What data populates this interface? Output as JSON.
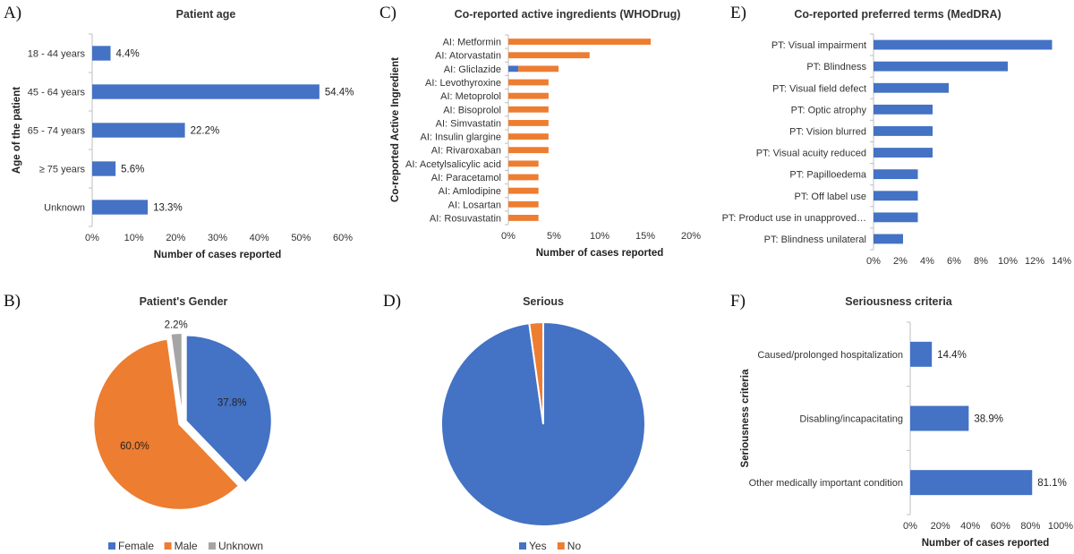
{
  "colors": {
    "blue": "#4472C4",
    "orange": "#ED7D31",
    "gray": "#A5A5A5",
    "axis": "#BFBFBF"
  },
  "chart_data": [
    {
      "panel": "A)",
      "type": "bar",
      "orientation": "horizontal",
      "title": "Patient age",
      "xlabel": "Number of cases reported",
      "ylabel": "Age of the patient",
      "categories": [
        "18 - 44 years",
        "45 - 64 years",
        "65 - 74 years",
        "≥ 75 years",
        "Unknown"
      ],
      "values": [
        4.4,
        54.4,
        22.2,
        5.6,
        13.3
      ],
      "data_labels": [
        "4.4%",
        "54.4%",
        "22.2%",
        "5.6%",
        "13.3%"
      ],
      "xlim": [
        0,
        60
      ],
      "xticks": [
        "0%",
        "10%",
        "20%",
        "30%",
        "40%",
        "50%",
        "60%"
      ],
      "color": "#4472C4"
    },
    {
      "panel": "C)",
      "type": "bar",
      "orientation": "horizontal",
      "stacked": true,
      "title": "Co-reported active ingredients (WHODrug)",
      "xlabel": "Number of cases reported",
      "ylabel": "Co-reported Active Ingredient",
      "categories": [
        "AI: Metformin",
        "AI: Atorvastatin",
        "AI: Gliclazide",
        "AI: Levothyroxine",
        "AI: Metoprolol",
        "AI: Bisoprolol",
        "AI: Simvastatin",
        "AI: Insulin glargine",
        "AI: Rivaroxaban",
        "AI: Acetylsalicylic acid",
        "AI: Paracetamol",
        "AI: Amlodipine",
        "AI: Losartan",
        "AI: Rosuvastatin"
      ],
      "series": [
        {
          "values": [
            0,
            0,
            1.1,
            0,
            0,
            0,
            0,
            0,
            0,
            0,
            0,
            0,
            0,
            0
          ],
          "color": "#4472C4"
        },
        {
          "values": [
            15.6,
            8.9,
            4.4,
            4.4,
            4.4,
            4.4,
            4.4,
            4.4,
            4.4,
            3.3,
            3.3,
            3.3,
            3.3,
            3.3
          ],
          "color": "#ED7D31"
        }
      ],
      "xlim": [
        0,
        20
      ],
      "xticks": [
        "0%",
        "5%",
        "10%",
        "15%",
        "20%"
      ]
    },
    {
      "panel": "E)",
      "type": "bar",
      "orientation": "horizontal",
      "title": "Co-reported preferred terms (MedDRA)",
      "categories": [
        "PT: Visual impairment",
        "PT: Blindness",
        "PT: Visual field defect",
        "PT: Optic atrophy",
        "PT: Vision blurred",
        "PT: Visual acuity reduced",
        "PT: Papilloedema",
        "PT: Off label use",
        "PT: Product use in unapproved…",
        "PT: Blindness unilateral"
      ],
      "values": [
        13.3,
        10.0,
        5.6,
        4.4,
        4.4,
        4.4,
        3.3,
        3.3,
        3.3,
        2.2
      ],
      "xlim": [
        0,
        14
      ],
      "xticks": [
        "0%",
        "2%",
        "4%",
        "6%",
        "8%",
        "10%",
        "12%",
        "14%"
      ],
      "color": "#4472C4"
    },
    {
      "panel": "B)",
      "type": "pie",
      "title": "Patient's Gender",
      "slices": [
        {
          "name": "Female",
          "value": 37.8,
          "label": "37.8%",
          "color": "#4472C4"
        },
        {
          "name": "Male",
          "value": 60.0,
          "label": "60.0%",
          "color": "#ED7D31"
        },
        {
          "name": "Unknown",
          "value": 2.2,
          "label": "2.2%",
          "color": "#A5A5A5"
        }
      ],
      "legend": "bottom"
    },
    {
      "panel": "D)",
      "type": "pie",
      "title": "Serious",
      "slices": [
        {
          "name": "Yes",
          "value": 97.8,
          "color": "#4472C4"
        },
        {
          "name": "No",
          "value": 2.2,
          "color": "#ED7D31"
        }
      ],
      "legend": "bottom"
    },
    {
      "panel": "F)",
      "type": "bar",
      "orientation": "horizontal",
      "title": "Seriousness criteria",
      "xlabel": "Number of cases reported",
      "ylabel": "Seriousness criteria",
      "categories": [
        "Caused/prolonged hospitalization",
        "Disabling/incapacitating",
        "Other medically important condition"
      ],
      "values": [
        14.4,
        38.9,
        81.1
      ],
      "data_labels": [
        "14.4%",
        "38.9%",
        "81.1%"
      ],
      "xlim": [
        0,
        100
      ],
      "xticks": [
        "0%",
        "20%",
        "40%",
        "60%",
        "80%",
        "100%"
      ],
      "color": "#4472C4"
    }
  ]
}
